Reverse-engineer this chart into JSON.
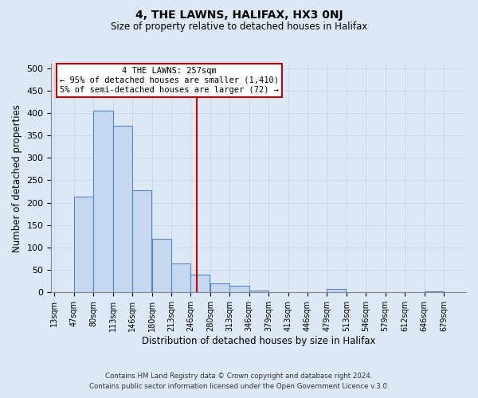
{
  "title": "4, THE LAWNS, HALIFAX, HX3 0NJ",
  "subtitle": "Size of property relative to detached houses in Halifax",
  "xlabel": "Distribution of detached houses by size in Halifax",
  "ylabel": "Number of detached properties",
  "bar_left_edges": [
    13,
    47,
    80,
    113,
    146,
    180,
    213,
    246,
    280,
    313,
    346,
    379,
    413,
    446,
    479,
    513,
    546,
    579,
    612,
    646
  ],
  "bar_heights": [
    0,
    214,
    405,
    372,
    228,
    119,
    65,
    40,
    20,
    14,
    5,
    0,
    0,
    0,
    8,
    0,
    0,
    0,
    0,
    2
  ],
  "bin_width": 33,
  "bar_color": "#c5d8f0",
  "bar_edge_color": "#5585c5",
  "vline_x": 257,
  "vline_color": "#cc0000",
  "ylim": [
    0,
    510
  ],
  "yticks": [
    0,
    50,
    100,
    150,
    200,
    250,
    300,
    350,
    400,
    450,
    500
  ],
  "xtick_labels": [
    "13sqm",
    "47sqm",
    "80sqm",
    "113sqm",
    "146sqm",
    "180sqm",
    "213sqm",
    "246sqm",
    "280sqm",
    "313sqm",
    "346sqm",
    "379sqm",
    "413sqm",
    "446sqm",
    "479sqm",
    "513sqm",
    "546sqm",
    "579sqm",
    "612sqm",
    "646sqm",
    "679sqm"
  ],
  "xtick_positions": [
    13,
    47,
    80,
    113,
    146,
    180,
    213,
    246,
    280,
    313,
    346,
    379,
    413,
    446,
    479,
    513,
    546,
    579,
    612,
    646,
    679
  ],
  "annotation_title": "4 THE LAWNS: 257sqm",
  "annotation_line1": "← 95% of detached houses are smaller (1,410)",
  "annotation_line2": "5% of semi-detached houses are larger (72) →",
  "box_color": "#ffffff",
  "box_edge_color": "#cc0000",
  "grid_color": "#c8d4e8",
  "bg_color": "#dce8f5",
  "footnote1": "Contains HM Land Registry data © Crown copyright and database right 2024.",
  "footnote2": "Contains public sector information licensed under the Open Government Licence v.3.0."
}
